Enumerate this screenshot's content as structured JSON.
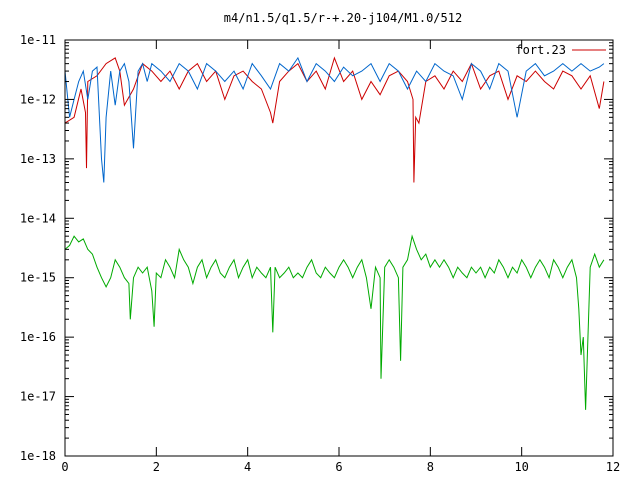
{
  "chart_data": {
    "type": "line",
    "title": "m4/n1.5/q1.5/r-+.20-j104/M1.0/512",
    "xlabel": "",
    "ylabel": "",
    "xlim": [
      0,
      12
    ],
    "ylim": [
      1e-18,
      1e-11
    ],
    "yscale": "log",
    "xticks": [
      0,
      2,
      4,
      6,
      8,
      10,
      12
    ],
    "xtick_labels": [
      "0",
      "2",
      "4",
      "6",
      "8",
      "10",
      "12"
    ],
    "yticks": [
      1e-18,
      1e-17,
      1e-16,
      1e-15,
      1e-14,
      1e-13,
      1e-12,
      1e-11
    ],
    "ytick_labels": [
      "1e-18",
      "1e-17",
      "1e-16",
      "1e-15",
      "1e-14",
      "1e-13",
      "1e-12",
      "1e-11"
    ],
    "grid": false,
    "legend": {
      "position": "top-right",
      "entries": [
        {
          "label": "fort.23",
          "color": "#cc0000"
        }
      ]
    },
    "series": [
      {
        "color": "#cc0000",
        "x": [
          0.0,
          0.2,
          0.35,
          0.45,
          0.47,
          0.5,
          0.7,
          0.9,
          1.1,
          1.2,
          1.3,
          1.5,
          1.7,
          1.9,
          2.1,
          2.3,
          2.5,
          2.7,
          2.9,
          3.1,
          3.3,
          3.5,
          3.7,
          3.9,
          4.1,
          4.3,
          4.5,
          4.55,
          4.7,
          4.9,
          5.1,
          5.3,
          5.5,
          5.7,
          5.9,
          6.1,
          6.3,
          6.5,
          6.7,
          6.9,
          7.1,
          7.3,
          7.5,
          7.62,
          7.64,
          7.68,
          7.75,
          7.9,
          8.1,
          8.3,
          8.5,
          8.7,
          8.9,
          9.1,
          9.3,
          9.5,
          9.7,
          9.9,
          10.1,
          10.3,
          10.5,
          10.7,
          10.9,
          11.1,
          11.3,
          11.5,
          11.7,
          11.8
        ],
        "y": [
          4e-13,
          5e-13,
          1.5e-12,
          6e-13,
          7e-14,
          2e-12,
          2.5e-12,
          4e-12,
          5e-12,
          3e-12,
          8e-13,
          1.5e-12,
          4e-12,
          3e-12,
          2e-12,
          3e-12,
          1.5e-12,
          3e-12,
          4e-12,
          2e-12,
          3e-12,
          1e-12,
          2.5e-12,
          3e-12,
          2e-12,
          1.5e-12,
          6e-13,
          4e-13,
          2e-12,
          3e-12,
          4e-12,
          2e-12,
          3e-12,
          1.5e-12,
          5e-12,
          2e-12,
          3e-12,
          1e-12,
          2e-12,
          1.2e-12,
          2.5e-12,
          3e-12,
          2e-12,
          1e-12,
          4e-14,
          5e-13,
          4e-13,
          2e-12,
          2.5e-12,
          1.5e-12,
          3e-12,
          2e-12,
          4e-12,
          1.5e-12,
          2.5e-12,
          3e-12,
          1e-12,
          2.5e-12,
          2e-12,
          3e-12,
          2e-12,
          1.5e-12,
          3e-12,
          2.5e-12,
          1.5e-12,
          2.5e-12,
          7e-13,
          2e-12
        ]
      },
      {
        "color": "#0066cc",
        "x": [
          0.0,
          0.1,
          0.2,
          0.3,
          0.4,
          0.5,
          0.6,
          0.7,
          0.8,
          0.85,
          0.9,
          1.0,
          1.1,
          1.2,
          1.3,
          1.4,
          1.5,
          1.6,
          1.7,
          1.8,
          1.9,
          2.1,
          2.3,
          2.5,
          2.7,
          2.9,
          3.1,
          3.3,
          3.5,
          3.7,
          3.9,
          4.1,
          4.3,
          4.5,
          4.7,
          4.9,
          5.1,
          5.3,
          5.5,
          5.7,
          5.9,
          6.1,
          6.3,
          6.5,
          6.7,
          6.9,
          7.1,
          7.3,
          7.5,
          7.7,
          7.9,
          8.1,
          8.3,
          8.5,
          8.7,
          8.9,
          9.1,
          9.3,
          9.5,
          9.7,
          9.9,
          10.1,
          10.3,
          10.5,
          10.7,
          10.9,
          11.1,
          11.3,
          11.5,
          11.7,
          11.8
        ],
        "y": [
          3e-12,
          5e-13,
          1e-12,
          2e-12,
          3e-12,
          1e-12,
          3e-12,
          3.5e-12,
          1e-13,
          4e-14,
          5e-13,
          3e-12,
          8e-13,
          3e-12,
          4e-12,
          2e-12,
          1.5e-13,
          3e-12,
          4e-12,
          2e-12,
          4e-12,
          3e-12,
          2e-12,
          4e-12,
          3e-12,
          1.5e-12,
          4e-12,
          3e-12,
          2e-12,
          3e-12,
          1.5e-12,
          4e-12,
          2.5e-12,
          1.5e-12,
          4e-12,
          3e-12,
          5e-12,
          2e-12,
          4e-12,
          3e-12,
          2e-12,
          3.5e-12,
          2.5e-12,
          3e-12,
          4e-12,
          2e-12,
          4e-12,
          3e-12,
          1.5e-12,
          3e-12,
          2e-12,
          4e-12,
          3e-12,
          2.5e-12,
          1e-12,
          4e-12,
          3e-12,
          1.5e-12,
          4e-12,
          3e-12,
          5e-13,
          3e-12,
          4e-12,
          2.5e-12,
          3e-12,
          4e-12,
          3e-12,
          4e-12,
          3e-12,
          3.5e-12,
          4e-12
        ]
      },
      {
        "color": "#00aa00",
        "x": [
          0.0,
          0.1,
          0.2,
          0.3,
          0.4,
          0.5,
          0.6,
          0.7,
          0.8,
          0.9,
          1.0,
          1.1,
          1.2,
          1.3,
          1.4,
          1.43,
          1.5,
          1.6,
          1.7,
          1.8,
          1.9,
          1.95,
          2.0,
          2.1,
          2.2,
          2.3,
          2.4,
          2.5,
          2.6,
          2.7,
          2.8,
          2.9,
          3.0,
          3.1,
          3.2,
          3.3,
          3.4,
          3.5,
          3.6,
          3.7,
          3.8,
          3.9,
          4.0,
          4.1,
          4.2,
          4.3,
          4.4,
          4.5,
          4.55,
          4.6,
          4.7,
          4.8,
          4.9,
          5.0,
          5.1,
          5.2,
          5.3,
          5.4,
          5.5,
          5.6,
          5.7,
          5.8,
          5.9,
          6.0,
          6.1,
          6.2,
          6.3,
          6.4,
          6.5,
          6.6,
          6.7,
          6.8,
          6.9,
          6.92,
          7.0,
          7.1,
          7.2,
          7.3,
          7.35,
          7.4,
          7.5,
          7.6,
          7.7,
          7.8,
          7.9,
          8.0,
          8.1,
          8.2,
          8.3,
          8.4,
          8.5,
          8.6,
          8.7,
          8.8,
          8.9,
          9.0,
          9.1,
          9.2,
          9.3,
          9.4,
          9.5,
          9.6,
          9.7,
          9.8,
          9.9,
          10.0,
          10.1,
          10.2,
          10.3,
          10.4,
          10.5,
          10.6,
          10.7,
          10.8,
          10.9,
          11.0,
          11.1,
          11.2,
          11.25,
          11.3,
          11.35,
          11.4,
          11.5,
          11.6,
          11.7,
          11.8
        ],
        "y": [
          3e-15,
          3.5e-15,
          5e-15,
          4e-15,
          4.5e-15,
          3e-15,
          2.5e-15,
          1.5e-15,
          1e-15,
          7e-16,
          1e-15,
          2e-15,
          1.5e-15,
          1e-15,
          8e-16,
          2e-16,
          1e-15,
          1.5e-15,
          1.2e-15,
          1.5e-15,
          6e-16,
          1.5e-16,
          1.2e-15,
          1e-15,
          2e-15,
          1.5e-15,
          1e-15,
          3e-15,
          2e-15,
          1.5e-15,
          8e-16,
          1.5e-15,
          2e-15,
          1e-15,
          1.5e-15,
          2e-15,
          1.2e-15,
          1e-15,
          1.5e-15,
          2e-15,
          1e-15,
          1.5e-15,
          2e-15,
          1e-15,
          1.5e-15,
          1.2e-15,
          1e-15,
          1.5e-15,
          1.2e-16,
          1.5e-15,
          1e-15,
          1.2e-15,
          1.5e-15,
          1e-15,
          1.2e-15,
          1e-15,
          1.5e-15,
          2e-15,
          1.2e-15,
          1e-15,
          1.5e-15,
          1.2e-15,
          1e-15,
          1.5e-15,
          2e-15,
          1.5e-15,
          1e-15,
          1.5e-15,
          2e-15,
          1e-15,
          3e-16,
          1.5e-15,
          1e-15,
          2e-17,
          1.5e-15,
          2e-15,
          1.5e-15,
          1e-15,
          4e-17,
          1.5e-15,
          2e-15,
          5e-15,
          3e-15,
          2e-15,
          2.5e-15,
          1.5e-15,
          2e-15,
          1.5e-15,
          2e-15,
          1.5e-15,
          1e-15,
          1.5e-15,
          1.2e-15,
          1e-15,
          1.5e-15,
          1.2e-15,
          1.5e-15,
          1e-15,
          1.5e-15,
          1.2e-15,
          2e-15,
          1.5e-15,
          1e-15,
          1.5e-15,
          1.2e-15,
          2e-15,
          1.5e-15,
          1e-15,
          1.5e-15,
          2e-15,
          1.5e-15,
          1e-15,
          2e-15,
          1.5e-15,
          1e-15,
          1.5e-15,
          2e-15,
          1e-15,
          3e-16,
          5e-17,
          1e-16,
          6e-18,
          1.5e-15,
          2.5e-15,
          1.5e-15,
          2e-15
        ]
      }
    ]
  }
}
